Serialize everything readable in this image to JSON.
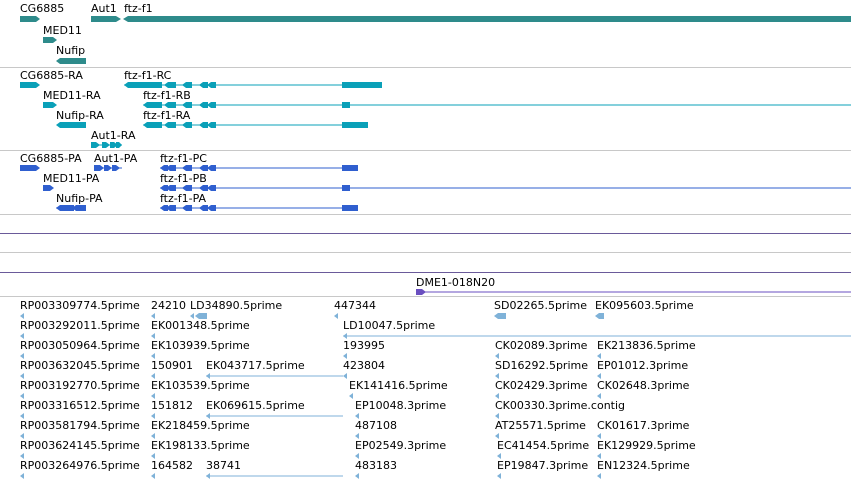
{
  "colors": {
    "gene": "#2e8b8b",
    "transcript": "#0aa0b8",
    "protein": "#2f5fcf",
    "clone": "#6a4fc0",
    "est": "#7fb2d8",
    "separator": "#c8c8c8",
    "track_line": "#6a5a9a"
  },
  "gene_track": {
    "labels": [
      "CG6885",
      "Aut1",
      "ftz-f1",
      "MED11",
      "Nufip"
    ]
  },
  "transcript_track": {
    "labels": [
      "CG6885-RA",
      "ftz-f1-RC",
      "MED11-RA",
      "ftz-f1-RB",
      "Nufip-RA",
      "ftz-f1-RA",
      "Aut1-RA"
    ]
  },
  "protein_track": {
    "labels": [
      "CG6885-PA",
      "Aut1-PA",
      "ftz-f1-PC",
      "MED11-PA",
      "ftz-f1-PB",
      "Nufip-PA",
      "ftz-f1-PA"
    ]
  },
  "clone_track": {
    "labels": [
      "DME1-018N20"
    ]
  },
  "est_track": {
    "rows": [
      [
        "RP003309774.5prime",
        "24210",
        "LD34890.5prime",
        "447344",
        "SD02265.5prime",
        "EK095603.5prime"
      ],
      [
        "RP003292011.5prime",
        "EK001348.5prime",
        "LD10047.5prime"
      ],
      [
        "RP003050964.5prime",
        "EK103939.5prime",
        "193995",
        "CK02089.3prime",
        "EK213836.5prime"
      ],
      [
        "RP003632045.5prime",
        "150901",
        "EK043717.5prime",
        "423804",
        "SD16292.5prime",
        "EP01012.3prime"
      ],
      [
        "RP003192770.5prime",
        "EK103539.5prime",
        "EK141416.5prime",
        "CK02429.3prime",
        "CK02648.3prime"
      ],
      [
        "RP003316512.5prime",
        "151812",
        "EK069615.5prime",
        "EP10048.3prime",
        "CK00330.3prime.contig"
      ],
      [
        "RP003581794.5prime",
        "EK218459.5prime",
        "487108",
        "AT25571.5prime",
        "CK01617.3prime"
      ],
      [
        "RP003624145.5prime",
        "EK198133.5prime",
        "EP02549.3prime",
        "EC41454.5prime",
        "EK129929.5prime"
      ],
      [
        "RP003264976.5prime",
        "164582",
        "38741",
        "483183",
        "EP19847.3prime",
        "EN12324.5prime"
      ]
    ]
  }
}
